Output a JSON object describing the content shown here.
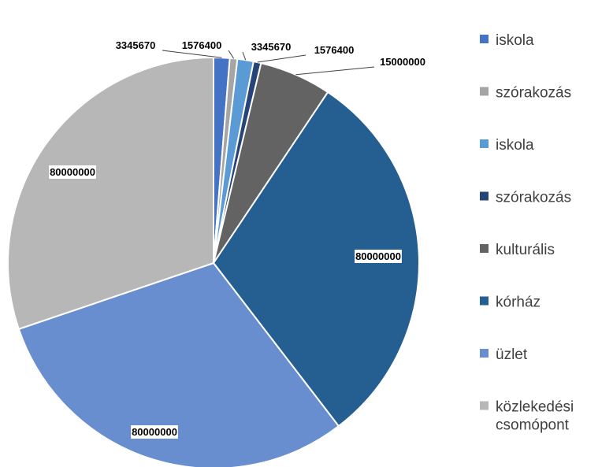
{
  "chart_data": {
    "type": "pie",
    "categories": [
      "iskola",
      "szórakozás",
      "iskola",
      "szórakozás",
      "kulturális",
      "kórház",
      "üzlet",
      "közlekedési csomópont"
    ],
    "values": [
      3345670,
      1576400,
      3345670,
      1576400,
      15000000,
      80000000,
      80000000,
      80000000
    ],
    "value_labels": [
      "3345670",
      "1576400",
      "3345670",
      "1576400",
      "15000000",
      "80000000",
      "80000000",
      "80000000"
    ],
    "colors": [
      "#4472C4",
      "#A5A5A5",
      "#5B9BD5",
      "#264478",
      "#636363",
      "#255E91",
      "#698ED0",
      "#B7B7B7"
    ],
    "legend_placement": "right",
    "start_angle_deg": 0,
    "direction": "clockwise"
  }
}
